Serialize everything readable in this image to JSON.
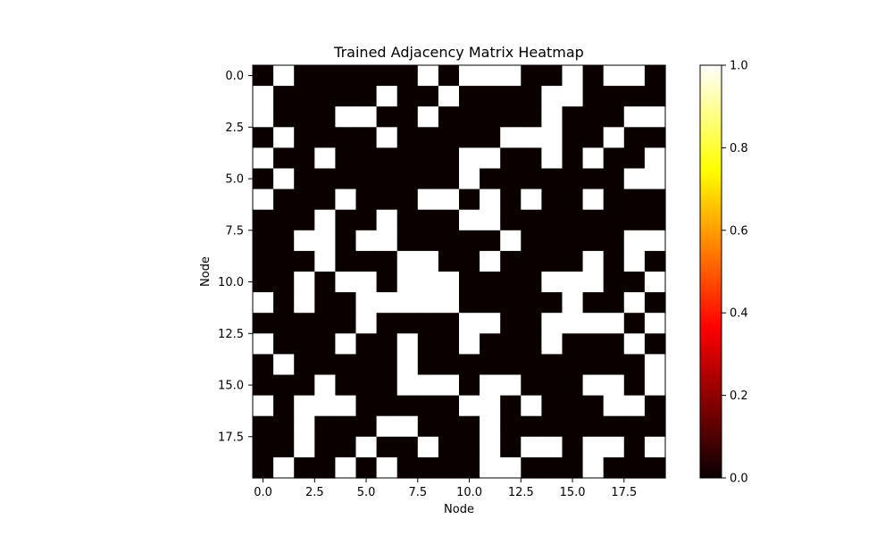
{
  "chart_data": {
    "type": "heatmap",
    "title": "Trained Adjacency Matrix Heatmap",
    "xlabel": "Node",
    "ylabel": "Node",
    "colormap": "hot",
    "vmin": 0,
    "vmax": 1,
    "x_ticks": [
      0,
      2.5,
      5,
      7.5,
      10,
      12.5,
      15,
      17.5
    ],
    "x_tick_labels": [
      "0.0",
      "2.5",
      "5.0",
      "7.5",
      "10.0",
      "12.5",
      "15.0",
      "17.5"
    ],
    "y_ticks": [
      0,
      2.5,
      5,
      7.5,
      10,
      12.5,
      15,
      17.5
    ],
    "y_tick_labels": [
      "0.0",
      "2.5",
      "5.0",
      "7.5",
      "10.0",
      "12.5",
      "15.0",
      "17.5"
    ],
    "colorbar_ticks": [
      0,
      0.2,
      0.4,
      0.6,
      0.8,
      1.0
    ],
    "colorbar_tick_labels": [
      "0.0",
      "0.2",
      "0.4",
      "0.6",
      "0.8",
      "1.0"
    ],
    "matrix": [
      [
        0,
        1,
        0,
        0,
        0,
        0,
        0,
        0,
        1,
        0,
        1,
        1,
        1,
        0,
        0,
        1,
        0,
        1,
        1,
        0
      ],
      [
        1,
        0,
        0,
        0,
        0,
        0,
        1,
        0,
        0,
        1,
        0,
        0,
        0,
        0,
        1,
        1,
        0,
        0,
        0,
        0
      ],
      [
        1,
        0,
        0,
        0,
        1,
        1,
        0,
        0,
        1,
        0,
        0,
        0,
        0,
        0,
        1,
        0,
        0,
        0,
        1,
        1
      ],
      [
        0,
        1,
        0,
        0,
        0,
        0,
        1,
        0,
        0,
        0,
        0,
        0,
        1,
        1,
        1,
        0,
        0,
        1,
        0,
        0
      ],
      [
        1,
        0,
        0,
        1,
        0,
        0,
        0,
        0,
        0,
        0,
        1,
        1,
        0,
        0,
        1,
        0,
        1,
        0,
        0,
        1
      ],
      [
        0,
        1,
        0,
        0,
        0,
        0,
        0,
        0,
        0,
        0,
        1,
        0,
        0,
        0,
        0,
        0,
        0,
        0,
        1,
        1
      ],
      [
        1,
        0,
        0,
        0,
        1,
        0,
        0,
        0,
        1,
        1,
        0,
        1,
        0,
        1,
        0,
        0,
        1,
        0,
        0,
        0
      ],
      [
        0,
        0,
        0,
        1,
        0,
        0,
        1,
        0,
        0,
        0,
        1,
        1,
        0,
        0,
        0,
        0,
        0,
        0,
        0,
        0
      ],
      [
        0,
        0,
        1,
        1,
        0,
        1,
        1,
        0,
        0,
        0,
        0,
        0,
        1,
        0,
        0,
        0,
        0,
        0,
        1,
        1
      ],
      [
        0,
        0,
        0,
        1,
        0,
        0,
        0,
        1,
        1,
        0,
        0,
        1,
        0,
        0,
        0,
        0,
        1,
        0,
        1,
        0
      ],
      [
        0,
        0,
        1,
        0,
        1,
        1,
        0,
        1,
        1,
        1,
        0,
        0,
        0,
        0,
        1,
        1,
        1,
        0,
        0,
        1
      ],
      [
        1,
        0,
        1,
        0,
        0,
        1,
        1,
        1,
        1,
        1,
        0,
        0,
        0,
        0,
        0,
        1,
        0,
        0,
        1,
        0
      ],
      [
        0,
        0,
        0,
        0,
        0,
        1,
        0,
        0,
        0,
        0,
        1,
        1,
        0,
        0,
        1,
        1,
        1,
        1,
        0,
        1
      ],
      [
        1,
        0,
        0,
        0,
        1,
        0,
        0,
        1,
        0,
        0,
        1,
        0,
        0,
        0,
        1,
        0,
        0,
        0,
        1,
        0
      ],
      [
        0,
        1,
        0,
        0,
        0,
        0,
        0,
        1,
        0,
        0,
        0,
        0,
        0,
        0,
        0,
        0,
        0,
        0,
        0,
        1
      ],
      [
        0,
        0,
        0,
        1,
        0,
        0,
        0,
        1,
        1,
        1,
        0,
        1,
        1,
        0,
        0,
        0,
        1,
        1,
        0,
        1
      ],
      [
        1,
        0,
        1,
        1,
        1,
        0,
        0,
        0,
        0,
        0,
        1,
        1,
        0,
        1,
        0,
        0,
        0,
        1,
        1,
        0
      ],
      [
        0,
        0,
        1,
        0,
        0,
        0,
        1,
        1,
        0,
        0,
        0,
        1,
        0,
        0,
        0,
        0,
        0,
        0,
        0,
        0
      ],
      [
        0,
        0,
        1,
        0,
        0,
        1,
        0,
        0,
        1,
        0,
        0,
        1,
        0,
        1,
        1,
        0,
        1,
        1,
        0,
        1
      ],
      [
        0,
        1,
        0,
        0,
        1,
        0,
        1,
        0,
        0,
        0,
        0,
        1,
        1,
        0,
        0,
        0,
        1,
        0,
        0,
        0
      ]
    ]
  }
}
